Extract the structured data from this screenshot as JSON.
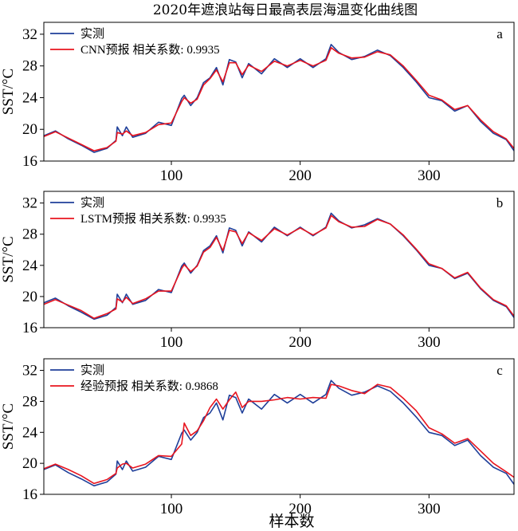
{
  "figure": {
    "title": "2020年遮浪站每日最高表层海温变化曲线图",
    "xlabel": "样本数",
    "ylabel": "SST/°C"
  },
  "colors": {
    "observed": "#1f3f99",
    "predicted": "#e8141e"
  },
  "chart_data": [
    {
      "type": "line",
      "panel_letter": "a",
      "xlabel": "样本数",
      "ylabel": "SST/°C",
      "xlim": [
        1,
        366
      ],
      "ylim": [
        16,
        33.5
      ],
      "xticks": [
        100,
        200,
        300
      ],
      "yticks": [
        16,
        20,
        24,
        28,
        32
      ],
      "legend_position": "top-left",
      "correlation": 0.9935,
      "series": [
        {
          "name": "实测",
          "color": "#1f3f99",
          "x": [
            1,
            10,
            20,
            30,
            40,
            50,
            57,
            58,
            62,
            65,
            70,
            80,
            90,
            100,
            108,
            110,
            115,
            120,
            125,
            130,
            135,
            140,
            145,
            150,
            155,
            160,
            170,
            180,
            190,
            200,
            210,
            220,
            224,
            230,
            240,
            250,
            260,
            270,
            280,
            290,
            300,
            310,
            320,
            330,
            340,
            350,
            360,
            366
          ],
          "y": [
            19.2,
            19.8,
            18.8,
            18.0,
            17.1,
            17.6,
            18.6,
            20.3,
            19.2,
            20.3,
            19.0,
            19.5,
            20.9,
            20.5,
            23.9,
            24.3,
            23.0,
            24.0,
            25.9,
            26.5,
            27.8,
            25.6,
            28.8,
            28.5,
            26.5,
            28.3,
            27.0,
            28.9,
            27.8,
            28.9,
            27.8,
            28.9,
            30.7,
            29.7,
            28.8,
            29.2,
            30.0,
            29.3,
            27.8,
            26.0,
            24.0,
            23.6,
            22.3,
            23.0,
            21.0,
            19.5,
            18.7,
            17.3
          ]
        },
        {
          "name": "CNN预报 相关系数: 0.9935",
          "color": "#e8141e",
          "x": [
            1,
            10,
            20,
            30,
            40,
            50,
            57,
            58,
            62,
            65,
            70,
            80,
            90,
            100,
            108,
            110,
            115,
            120,
            125,
            130,
            135,
            140,
            145,
            150,
            155,
            160,
            170,
            180,
            190,
            200,
            210,
            220,
            224,
            230,
            240,
            250,
            260,
            270,
            280,
            290,
            300,
            310,
            320,
            330,
            340,
            350,
            360,
            366
          ],
          "y": [
            19.1,
            19.7,
            18.9,
            18.1,
            17.3,
            17.7,
            18.5,
            19.6,
            19.4,
            19.8,
            19.2,
            19.6,
            20.6,
            20.8,
            23.5,
            24.0,
            23.3,
            23.8,
            25.6,
            26.4,
            27.5,
            26.0,
            28.4,
            28.4,
            26.9,
            28.1,
            27.3,
            28.6,
            28.0,
            28.7,
            28.0,
            28.7,
            30.3,
            29.6,
            29.0,
            29.1,
            29.8,
            29.4,
            28.0,
            26.2,
            24.3,
            23.7,
            22.5,
            23.0,
            21.2,
            19.7,
            18.8,
            17.6
          ]
        }
      ]
    },
    {
      "type": "line",
      "panel_letter": "b",
      "xlabel": "样本数",
      "ylabel": "SST/°C",
      "xlim": [
        1,
        366
      ],
      "ylim": [
        16,
        33.5
      ],
      "xticks": [
        100,
        200,
        300
      ],
      "yticks": [
        16,
        20,
        24,
        28,
        32
      ],
      "legend_position": "top-left",
      "correlation": 0.9935,
      "series": [
        {
          "name": "实测",
          "color": "#1f3f99",
          "x": [
            1,
            10,
            20,
            30,
            40,
            50,
            57,
            58,
            62,
            65,
            70,
            80,
            90,
            100,
            108,
            110,
            115,
            120,
            125,
            130,
            135,
            140,
            145,
            150,
            155,
            160,
            170,
            180,
            190,
            200,
            210,
            220,
            224,
            230,
            240,
            250,
            260,
            270,
            280,
            290,
            300,
            310,
            320,
            330,
            340,
            350,
            360,
            366
          ],
          "y": [
            19.2,
            19.8,
            18.8,
            18.0,
            17.1,
            17.6,
            18.6,
            20.3,
            19.2,
            20.3,
            19.0,
            19.5,
            20.9,
            20.5,
            23.9,
            24.3,
            23.0,
            24.0,
            25.9,
            26.5,
            27.8,
            25.6,
            28.8,
            28.5,
            26.5,
            28.3,
            27.0,
            28.9,
            27.8,
            28.9,
            27.8,
            28.9,
            30.7,
            29.7,
            28.8,
            29.2,
            30.0,
            29.3,
            27.8,
            26.0,
            24.0,
            23.6,
            22.3,
            23.0,
            21.0,
            19.5,
            18.7,
            17.3
          ]
        },
        {
          "name": "LSTM预报 相关系数: 0.9935",
          "color": "#e8141e",
          "x": [
            1,
            10,
            20,
            30,
            40,
            50,
            57,
            58,
            62,
            65,
            70,
            80,
            90,
            100,
            108,
            110,
            115,
            120,
            125,
            130,
            135,
            140,
            145,
            150,
            155,
            160,
            170,
            180,
            190,
            200,
            210,
            220,
            224,
            230,
            240,
            250,
            260,
            270,
            280,
            290,
            300,
            310,
            320,
            330,
            340,
            350,
            360,
            366
          ],
          "y": [
            19.0,
            19.6,
            18.9,
            18.2,
            17.2,
            17.8,
            18.4,
            19.7,
            19.3,
            19.9,
            19.1,
            19.7,
            20.7,
            20.7,
            23.6,
            24.1,
            23.2,
            23.9,
            25.7,
            26.3,
            27.6,
            25.9,
            28.5,
            28.3,
            26.8,
            28.2,
            27.2,
            28.7,
            27.9,
            28.8,
            27.9,
            28.8,
            30.4,
            29.6,
            28.9,
            29.0,
            29.9,
            29.3,
            27.9,
            26.1,
            24.2,
            23.6,
            22.4,
            23.1,
            21.1,
            19.6,
            18.8,
            17.5
          ]
        }
      ]
    },
    {
      "type": "line",
      "panel_letter": "c",
      "xlabel": "样本数",
      "ylabel": "SST/°C",
      "xlim": [
        1,
        366
      ],
      "ylim": [
        16,
        33.5
      ],
      "xticks": [
        100,
        200,
        300
      ],
      "yticks": [
        16,
        20,
        24,
        28,
        32
      ],
      "legend_position": "top-left",
      "correlation": 0.9868,
      "series": [
        {
          "name": "实测",
          "color": "#1f3f99",
          "x": [
            1,
            10,
            20,
            30,
            40,
            50,
            57,
            58,
            62,
            65,
            70,
            80,
            90,
            100,
            108,
            110,
            115,
            120,
            125,
            130,
            135,
            140,
            145,
            150,
            155,
            160,
            170,
            180,
            190,
            200,
            210,
            220,
            224,
            230,
            240,
            250,
            260,
            270,
            280,
            290,
            300,
            310,
            320,
            330,
            340,
            350,
            360,
            366
          ],
          "y": [
            19.2,
            19.8,
            18.8,
            18.0,
            17.1,
            17.6,
            18.6,
            20.3,
            19.2,
            20.3,
            19.0,
            19.5,
            20.9,
            20.5,
            23.9,
            24.3,
            23.0,
            24.0,
            25.9,
            26.5,
            27.8,
            25.6,
            28.8,
            28.5,
            26.5,
            28.3,
            27.0,
            28.9,
            27.8,
            28.9,
            27.8,
            28.9,
            30.7,
            29.7,
            28.8,
            29.2,
            30.0,
            29.3,
            27.8,
            26.0,
            24.0,
            23.6,
            22.3,
            23.0,
            21.0,
            19.5,
            18.7,
            17.3
          ]
        },
        {
          "name": "经验预报 相关系数: 0.9868",
          "color": "#e8141e",
          "x": [
            1,
            10,
            20,
            30,
            40,
            50,
            57,
            58,
            62,
            65,
            70,
            80,
            90,
            100,
            108,
            110,
            115,
            120,
            125,
            130,
            135,
            140,
            145,
            150,
            155,
            160,
            170,
            180,
            190,
            200,
            210,
            220,
            224,
            230,
            240,
            250,
            260,
            270,
            280,
            290,
            300,
            310,
            320,
            330,
            340,
            350,
            360,
            366
          ],
          "y": [
            19.3,
            19.9,
            19.2,
            18.4,
            17.4,
            17.9,
            18.7,
            19.4,
            19.9,
            20.0,
            19.4,
            19.9,
            21.0,
            20.9,
            22.5,
            25.2,
            23.6,
            24.2,
            25.5,
            27.2,
            28.3,
            27.0,
            28.2,
            29.2,
            27.2,
            28.0,
            28.0,
            28.2,
            28.5,
            28.3,
            28.5,
            28.4,
            30.2,
            30.0,
            29.4,
            29.0,
            30.2,
            29.8,
            28.4,
            26.8,
            24.6,
            23.8,
            22.6,
            23.2,
            21.6,
            20.0,
            18.9,
            18.2
          ]
        }
      ]
    }
  ]
}
